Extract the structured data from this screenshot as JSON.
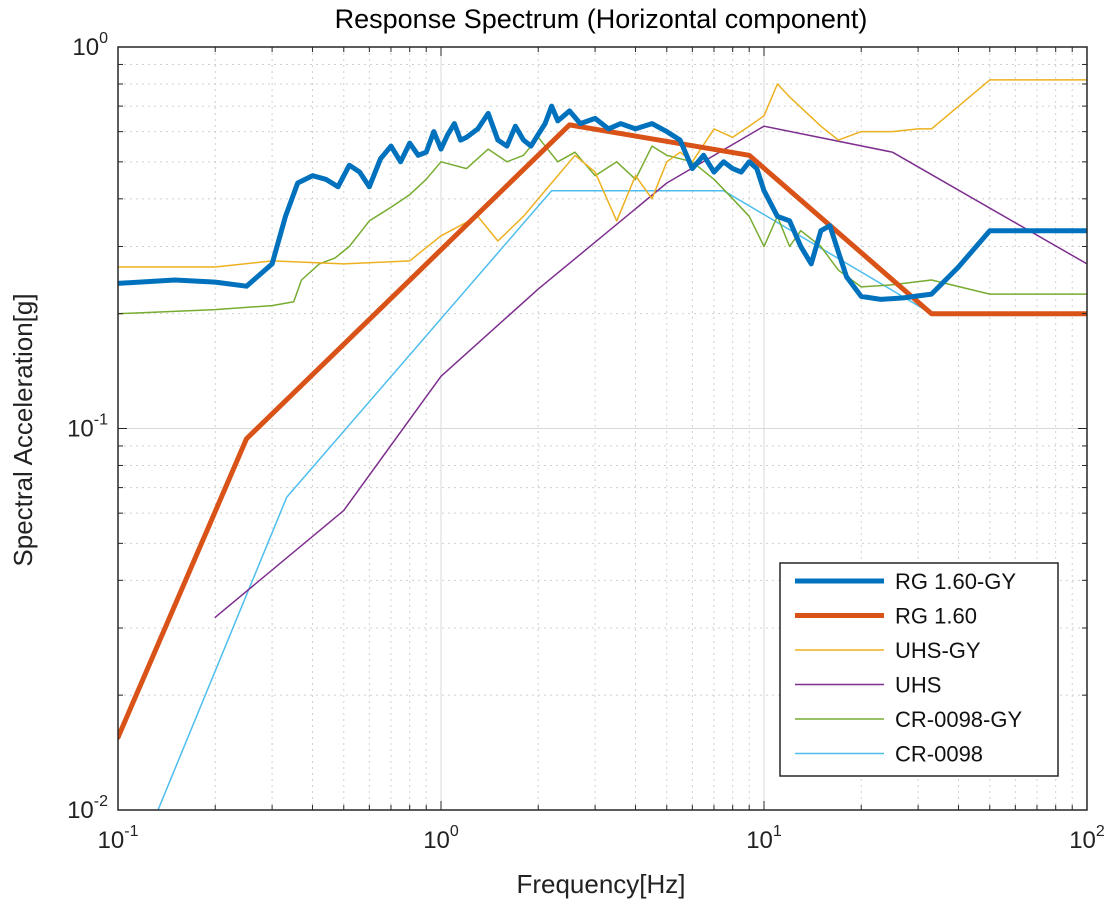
{
  "chart_data": {
    "type": "line",
    "title": "Response Spectrum (Horizontal component)",
    "xlabel": "Frequency[Hz]",
    "ylabel": "Spectral Acceleration[g]",
    "xscale": "log",
    "yscale": "log",
    "xlim": [
      0.1,
      100
    ],
    "ylim": [
      0.01,
      1
    ],
    "grid": true,
    "legend_position": "bottom-right",
    "x_ticks": [
      {
        "base": "10",
        "exp": "-1",
        "value": 0.1
      },
      {
        "base": "10",
        "exp": "0",
        "value": 1
      },
      {
        "base": "10",
        "exp": "1",
        "value": 10
      },
      {
        "base": "10",
        "exp": "2",
        "value": 100
      }
    ],
    "y_ticks": [
      {
        "base": "10",
        "exp": "-2",
        "value": 0.01
      },
      {
        "base": "10",
        "exp": "-1",
        "value": 0.1
      },
      {
        "base": "10",
        "exp": "0",
        "value": 1
      }
    ],
    "series": [
      {
        "name": "RG 1.60-GY",
        "color": "#0072BD",
        "width": 5,
        "x": [
          0.1,
          0.15,
          0.2,
          0.25,
          0.3,
          0.33,
          0.36,
          0.4,
          0.44,
          0.48,
          0.52,
          0.56,
          0.6,
          0.65,
          0.7,
          0.75,
          0.8,
          0.85,
          0.9,
          0.95,
          1.0,
          1.05,
          1.1,
          1.15,
          1.2,
          1.3,
          1.4,
          1.5,
          1.6,
          1.7,
          1.8,
          1.9,
          2.0,
          2.1,
          2.2,
          2.3,
          2.4,
          2.5,
          2.7,
          3.0,
          3.3,
          3.6,
          4.0,
          4.5,
          5.0,
          5.5,
          6.0,
          6.5,
          7.0,
          7.5,
          8.0,
          8.5,
          9.0,
          9.5,
          10.0,
          11.0,
          12.0,
          13.0,
          14.0,
          15.0,
          16.0,
          17.0,
          18.0,
          20.0,
          23.0,
          27.0,
          33.0,
          40.0,
          50.0,
          60.0,
          80.0,
          100.0
        ],
        "y": [
          0.24,
          0.245,
          0.242,
          0.236,
          0.27,
          0.36,
          0.44,
          0.46,
          0.45,
          0.43,
          0.49,
          0.47,
          0.43,
          0.51,
          0.55,
          0.5,
          0.56,
          0.52,
          0.53,
          0.6,
          0.54,
          0.59,
          0.63,
          0.57,
          0.58,
          0.61,
          0.67,
          0.57,
          0.55,
          0.62,
          0.57,
          0.55,
          0.59,
          0.63,
          0.7,
          0.64,
          0.66,
          0.68,
          0.63,
          0.65,
          0.61,
          0.63,
          0.61,
          0.63,
          0.6,
          0.57,
          0.48,
          0.52,
          0.47,
          0.5,
          0.48,
          0.47,
          0.5,
          0.48,
          0.42,
          0.36,
          0.35,
          0.3,
          0.27,
          0.33,
          0.34,
          0.29,
          0.25,
          0.222,
          0.218,
          0.22,
          0.225,
          0.265,
          0.33,
          0.33,
          0.33,
          0.33
        ]
      },
      {
        "name": "RG 1.60",
        "color": "#D95319",
        "width": 5,
        "x": [
          0.1,
          0.25,
          2.5,
          9.0,
          33.0,
          100.0
        ],
        "y": [
          0.0155,
          0.094,
          0.625,
          0.52,
          0.2,
          0.2
        ]
      },
      {
        "name": "UHS-GY",
        "color": "#EDB120",
        "width": 1.5,
        "x": [
          0.1,
          0.2,
          0.3,
          0.5,
          0.8,
          1.0,
          1.3,
          1.5,
          1.8,
          2.2,
          2.6,
          3.0,
          3.5,
          4.0,
          4.5,
          5.0,
          5.5,
          6.0,
          7.0,
          8.0,
          9.0,
          10.0,
          11.0,
          12.0,
          15.0,
          17.0,
          20.0,
          25.0,
          30.0,
          33.0,
          50.0,
          100.0
        ],
        "y": [
          0.265,
          0.265,
          0.275,
          0.27,
          0.275,
          0.32,
          0.36,
          0.31,
          0.36,
          0.44,
          0.52,
          0.47,
          0.35,
          0.46,
          0.4,
          0.5,
          0.53,
          0.5,
          0.61,
          0.58,
          0.62,
          0.66,
          0.8,
          0.74,
          0.62,
          0.57,
          0.6,
          0.6,
          0.61,
          0.61,
          0.82,
          0.82
        ]
      },
      {
        "name": "UHS",
        "color": "#7E2F8E",
        "width": 1.5,
        "x": [
          0.2,
          0.5,
          1.0,
          2.0,
          5.0,
          10.0,
          25.0,
          100.0
        ],
        "y": [
          0.032,
          0.061,
          0.137,
          0.232,
          0.44,
          0.62,
          0.53,
          0.27
        ]
      },
      {
        "name": "CR-0098-GY",
        "color": "#77AC30",
        "width": 1.5,
        "x": [
          0.1,
          0.2,
          0.3,
          0.35,
          0.37,
          0.42,
          0.47,
          0.52,
          0.6,
          0.7,
          0.8,
          0.9,
          1.0,
          1.2,
          1.4,
          1.6,
          1.8,
          2.0,
          2.3,
          2.6,
          3.0,
          3.5,
          4.0,
          4.5,
          5.0,
          6.0,
          7.0,
          8.0,
          9.0,
          10.0,
          11.0,
          12.0,
          13.0,
          15.0,
          17.0,
          20.0,
          25.0,
          33.0,
          50.0,
          100.0
        ],
        "y": [
          0.2,
          0.205,
          0.21,
          0.215,
          0.245,
          0.27,
          0.28,
          0.3,
          0.35,
          0.38,
          0.41,
          0.45,
          0.5,
          0.48,
          0.54,
          0.5,
          0.52,
          0.58,
          0.5,
          0.53,
          0.46,
          0.5,
          0.45,
          0.55,
          0.52,
          0.5,
          0.45,
          0.4,
          0.36,
          0.3,
          0.36,
          0.3,
          0.33,
          0.3,
          0.26,
          0.235,
          0.238,
          0.245,
          0.225,
          0.225
        ]
      },
      {
        "name": "CR-0098",
        "color": "#4DBEEE",
        "width": 1.5,
        "x": [
          0.133,
          0.333,
          2.2,
          7.5,
          25.0,
          33.0,
          100.0
        ],
        "y": [
          0.01,
          0.066,
          0.42,
          0.42,
          0.23,
          0.2,
          0.2
        ]
      }
    ]
  }
}
